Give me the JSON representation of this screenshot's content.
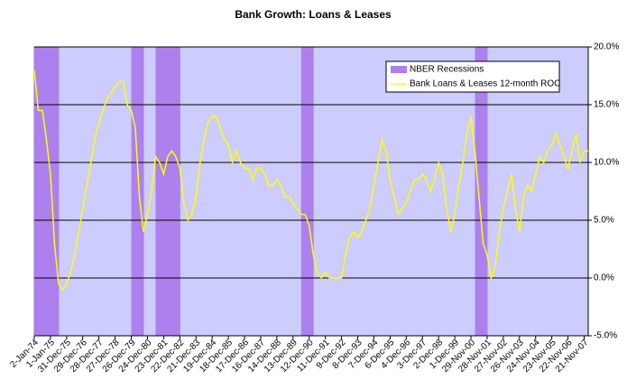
{
  "chart_data": {
    "type": "line",
    "title": "Bank Growth: Loans & Leases",
    "categories": [
      "2-Jan-74",
      null,
      null,
      null,
      "1-Jan-75",
      null,
      null,
      null,
      "31-Dec-75",
      null,
      null,
      null,
      "29-Dec-76",
      null,
      null,
      null,
      "28-Dec-77",
      null,
      null,
      null,
      "27-Dec-78",
      null,
      null,
      null,
      "26-Dec-79",
      null,
      null,
      null,
      "24-Dec-80",
      null,
      null,
      null,
      "23-Dec-81",
      null,
      null,
      null,
      "22-Dec-82",
      null,
      null,
      null,
      "21-Dec-83",
      null,
      null,
      null,
      "19-Dec-84",
      null,
      null,
      null,
      "18-Dec-85",
      null,
      null,
      null,
      "17-Dec-86",
      null,
      null,
      null,
      "16-Dec-87",
      null,
      null,
      null,
      "14-Dec-88",
      null,
      null,
      null,
      "13-Dec-89",
      null,
      null,
      null,
      "12-Dec-90",
      null,
      null,
      null,
      "11-Dec-91",
      null,
      null,
      null,
      "9-Dec-92",
      null,
      null,
      null,
      "8-Dec-93",
      null,
      null,
      null,
      "7-Dec-94",
      null,
      null,
      null,
      "6-Dec-95",
      null,
      null,
      null,
      "4-Dec-96",
      null,
      null,
      null,
      "3-Dec-97",
      null,
      null,
      null,
      "2-Dec-98",
      null,
      null,
      null,
      "1-Dec-99",
      null,
      null,
      null,
      "29-Nov-00",
      null,
      null,
      null,
      "28-Nov-01",
      null,
      null,
      null,
      "27-Nov-02",
      null,
      null,
      null,
      "26-Nov-03",
      null,
      null,
      null,
      "24-Nov-04",
      null,
      null,
      null,
      "23-Nov-05",
      null,
      null,
      null,
      "22-Nov-06",
      null,
      null,
      null,
      "21-Nov-07",
      null
    ],
    "series": [
      {
        "name": "NBER Recessions",
        "type": "bar",
        "color": "#ad80ee",
        "values": [
          20,
          20,
          20,
          20,
          20,
          20,
          null,
          null,
          null,
          null,
          null,
          null,
          null,
          null,
          null,
          null,
          null,
          null,
          null,
          null,
          null,
          null,
          null,
          null,
          20,
          20,
          20,
          null,
          null,
          null,
          20,
          20,
          20,
          20,
          20,
          20,
          null,
          null,
          null,
          null,
          null,
          null,
          null,
          null,
          null,
          null,
          null,
          null,
          null,
          null,
          null,
          null,
          null,
          null,
          null,
          null,
          null,
          null,
          null,
          null,
          null,
          null,
          null,
          null,
          null,
          null,
          20,
          20,
          20,
          null,
          null,
          null,
          null,
          null,
          null,
          null,
          null,
          null,
          null,
          null,
          null,
          null,
          null,
          null,
          null,
          null,
          null,
          null,
          null,
          null,
          null,
          null,
          null,
          null,
          null,
          null,
          null,
          null,
          null,
          null,
          null,
          null,
          null,
          null,
          null,
          null,
          null,
          null,
          null,
          20,
          20,
          20,
          null,
          null,
          null,
          null,
          null,
          null,
          null,
          null,
          null,
          null,
          null,
          null,
          null,
          null,
          null,
          null,
          null,
          null,
          null,
          null,
          null,
          null,
          null,
          null,
          null,
          null
        ]
      },
      {
        "name": "Bank Loans & Leases 12-month ROC",
        "type": "line",
        "color": "#ffff00",
        "values": [
          18,
          14.5,
          14.5,
          12,
          9,
          3,
          -0.5,
          -1,
          -0.5,
          0.5,
          2,
          4,
          6,
          8,
          10,
          12,
          13.5,
          14.5,
          15.5,
          16,
          16.5,
          17,
          17,
          15,
          14.5,
          13,
          7,
          4,
          5.5,
          7.5,
          10.5,
          10,
          9,
          10.5,
          11,
          10.5,
          9.5,
          6.5,
          5,
          5.5,
          7,
          10,
          12,
          13.5,
          14,
          14,
          13,
          12,
          11.5,
          10,
          11,
          10,
          9.5,
          9.5,
          8.5,
          9.5,
          9.5,
          9,
          8,
          8,
          8.5,
          8,
          7,
          7,
          6.5,
          6,
          5.5,
          5.5,
          4.5,
          2,
          0.5,
          0,
          0.5,
          0,
          0,
          0,
          0,
          2,
          3.5,
          4,
          3.5,
          4,
          5,
          6,
          8,
          10,
          12,
          11,
          8.5,
          7,
          5.5,
          6,
          6.5,
          7.5,
          8.5,
          8.5,
          9,
          8.5,
          7.5,
          8.5,
          10,
          9,
          6,
          4,
          5.5,
          8,
          10,
          12.5,
          14,
          11,
          7,
          3,
          2,
          0,
          1,
          4,
          6,
          7.5,
          9,
          6,
          4,
          7,
          8,
          7.5,
          9,
          10.5,
          10,
          11,
          11.5,
          12.5,
          11.5,
          10.5,
          9.5,
          11,
          12.5,
          10,
          11,
          11
        ]
      }
    ],
    "ylim": [
      -5,
      20
    ],
    "yticks": [
      {
        "value": -5,
        "label": "-5.0%"
      },
      {
        "value": 0,
        "label": "0.0%"
      },
      {
        "value": 5,
        "label": "5.0%"
      },
      {
        "value": 10,
        "label": "10.0%"
      },
      {
        "value": 15,
        "label": "15.0%"
      },
      {
        "value": 20,
        "label": "20.0%"
      }
    ],
    "grid": true,
    "legend": "top-right"
  }
}
